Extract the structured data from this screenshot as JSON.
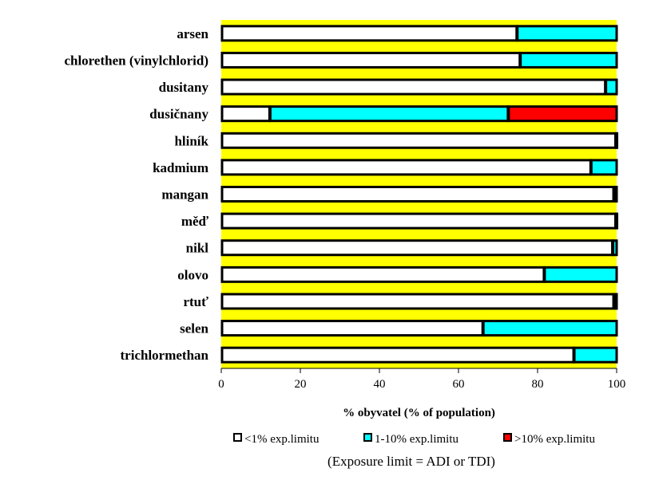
{
  "chart_data": {
    "type": "bar",
    "orientation": "horizontal",
    "stacked": true,
    "categories": [
      "arsen",
      "chlorethen (vinylchlorid)",
      "dusitany",
      "dusičnany",
      "hliník",
      "kadmium",
      "mangan",
      "měď",
      "nikl",
      "olovo",
      "rtuť",
      "selen",
      "trichlormethan"
    ],
    "series": [
      {
        "name": "<1% exp.limitu",
        "color": "#ffffff",
        "values": [
          74.7,
          75.5,
          97.1,
          12.2,
          99.7,
          93.4,
          99.2,
          99.7,
          98.9,
          81.6,
          99.2,
          66.1,
          89.1
        ]
      },
      {
        "name": "1-10% exp.limitu",
        "color": "#00ffff",
        "values": [
          25.3,
          24.5,
          2.9,
          60.3,
          0.3,
          6.6,
          0.8,
          0.3,
          1.1,
          18.4,
          0.8,
          33.9,
          10.9
        ]
      },
      {
        "name": ">10% exp.limitu",
        "color": "#ff0000",
        "values": [
          0,
          0,
          0,
          27.5,
          0,
          0,
          0,
          0,
          0,
          0,
          0,
          0,
          0
        ]
      }
    ],
    "xlabel": "% obyvatel (% of population)",
    "xlim": [
      0,
      100
    ],
    "xticks": [
      0,
      20,
      40,
      60,
      80,
      100
    ],
    "xtick_labels": [
      "0",
      "20",
      "40",
      "60",
      "80",
      "100"
    ],
    "grid": false,
    "legend_position": "bottom",
    "note": "(Exposure limit = ADI  or TDI)",
    "colors": {
      "plot_background": "#ffff00",
      "bar_outline": "#000000"
    }
  }
}
